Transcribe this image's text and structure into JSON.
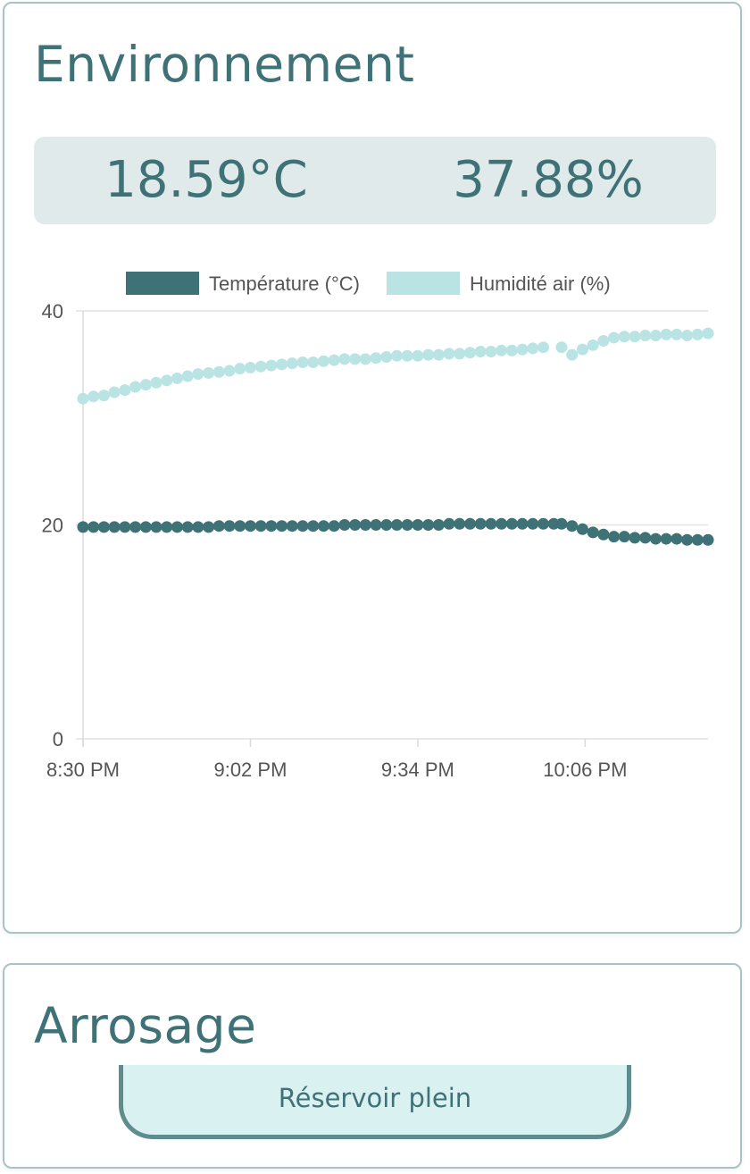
{
  "environment": {
    "title": "Environnement",
    "temperature_reading": "18.59°C",
    "humidity_reading": "37.88%"
  },
  "watering": {
    "title": "Arrosage",
    "tank_status": "Réservoir plein"
  },
  "colors": {
    "accent": "#3e7276",
    "temperature_series": "#3e7276",
    "humidity_series": "#b9e4e3",
    "readings_background": "#e1eaea",
    "status_background": "#daf1f1",
    "status_border": "#5e8c8f"
  },
  "chart_data": {
    "type": "scatter",
    "title": "",
    "xlabel": "",
    "ylabel": "",
    "ylim": [
      0,
      40
    ],
    "yticks": [
      "0",
      "20",
      "40"
    ],
    "xticks": [
      "8:30 PM",
      "9:02 PM",
      "9:34 PM",
      "10:06 PM"
    ],
    "xtick_minutes": [
      0,
      32,
      64,
      96
    ],
    "xlim_minutes": [
      0,
      119.5
    ],
    "legend_position": "top",
    "grid": true,
    "series": [
      {
        "name": "Température (°C)",
        "color": "#3e7276",
        "points": [
          [
            0,
            19.8
          ],
          [
            2,
            19.8
          ],
          [
            4,
            19.8
          ],
          [
            6,
            19.8
          ],
          [
            8,
            19.8
          ],
          [
            10,
            19.8
          ],
          [
            12,
            19.8
          ],
          [
            14,
            19.8
          ],
          [
            16,
            19.8
          ],
          [
            18,
            19.8
          ],
          [
            20,
            19.8
          ],
          [
            22,
            19.8
          ],
          [
            24,
            19.8
          ],
          [
            26,
            19.9
          ],
          [
            28,
            19.9
          ],
          [
            30,
            19.9
          ],
          [
            32,
            19.9
          ],
          [
            34,
            19.9
          ],
          [
            36,
            19.9
          ],
          [
            38,
            19.9
          ],
          [
            40,
            19.9
          ],
          [
            42,
            19.9
          ],
          [
            44,
            19.9
          ],
          [
            46,
            19.9
          ],
          [
            48,
            19.9
          ],
          [
            50,
            20.0
          ],
          [
            52,
            20.0
          ],
          [
            54,
            20.0
          ],
          [
            56,
            20.0
          ],
          [
            58,
            20.0
          ],
          [
            60,
            20.0
          ],
          [
            62,
            20.0
          ],
          [
            64,
            20.0
          ],
          [
            66,
            20.0
          ],
          [
            68,
            20.0
          ],
          [
            70,
            20.1
          ],
          [
            72,
            20.1
          ],
          [
            74,
            20.1
          ],
          [
            76,
            20.1
          ],
          [
            78,
            20.1
          ],
          [
            80,
            20.1
          ],
          [
            82,
            20.1
          ],
          [
            84,
            20.1
          ],
          [
            86,
            20.1
          ],
          [
            88,
            20.1
          ],
          [
            90,
            20.1
          ],
          [
            91.5,
            20.1
          ],
          [
            93.5,
            19.9
          ],
          [
            95.5,
            19.6
          ],
          [
            97.5,
            19.3
          ],
          [
            99.5,
            19.1
          ],
          [
            101.5,
            18.9
          ],
          [
            103.5,
            18.9
          ],
          [
            105.5,
            18.8
          ],
          [
            107.5,
            18.8
          ],
          [
            109.5,
            18.7
          ],
          [
            111.5,
            18.7
          ],
          [
            113.5,
            18.7
          ],
          [
            115.5,
            18.6
          ],
          [
            117.5,
            18.6
          ],
          [
            119.5,
            18.6
          ]
        ]
      },
      {
        "name": "Humidité air (%)",
        "color": "#b9e4e3",
        "points": [
          [
            0,
            31.8
          ],
          [
            2,
            32.0
          ],
          [
            4,
            32.1
          ],
          [
            6,
            32.4
          ],
          [
            8,
            32.6
          ],
          [
            10,
            32.9
          ],
          [
            12,
            33.1
          ],
          [
            14,
            33.3
          ],
          [
            16,
            33.5
          ],
          [
            18,
            33.7
          ],
          [
            20,
            33.9
          ],
          [
            22,
            34.1
          ],
          [
            24,
            34.2
          ],
          [
            26,
            34.3
          ],
          [
            28,
            34.4
          ],
          [
            30,
            34.6
          ],
          [
            32,
            34.7
          ],
          [
            34,
            34.8
          ],
          [
            36,
            34.9
          ],
          [
            38,
            35.0
          ],
          [
            40,
            35.1
          ],
          [
            42,
            35.2
          ],
          [
            44,
            35.2
          ],
          [
            46,
            35.3
          ],
          [
            48,
            35.4
          ],
          [
            50,
            35.5
          ],
          [
            52,
            35.5
          ],
          [
            54,
            35.5
          ],
          [
            56,
            35.6
          ],
          [
            58,
            35.7
          ],
          [
            60,
            35.8
          ],
          [
            62,
            35.8
          ],
          [
            64,
            35.8
          ],
          [
            66,
            35.9
          ],
          [
            68,
            35.9
          ],
          [
            70,
            36.0
          ],
          [
            72,
            36.0
          ],
          [
            74,
            36.1
          ],
          [
            76,
            36.2
          ],
          [
            78,
            36.2
          ],
          [
            80,
            36.3
          ],
          [
            82,
            36.3
          ],
          [
            84,
            36.4
          ],
          [
            86,
            36.5
          ],
          [
            88,
            36.6
          ],
          [
            91.5,
            36.6
          ],
          [
            93.5,
            35.9
          ],
          [
            95.5,
            36.4
          ],
          [
            97.5,
            36.8
          ],
          [
            99.5,
            37.2
          ],
          [
            101.5,
            37.5
          ],
          [
            103.5,
            37.6
          ],
          [
            105.5,
            37.6
          ],
          [
            107.5,
            37.7
          ],
          [
            109.5,
            37.7
          ],
          [
            111.5,
            37.8
          ],
          [
            113.5,
            37.8
          ],
          [
            115.5,
            37.7
          ],
          [
            117.5,
            37.8
          ],
          [
            119.5,
            37.9
          ]
        ]
      }
    ]
  }
}
